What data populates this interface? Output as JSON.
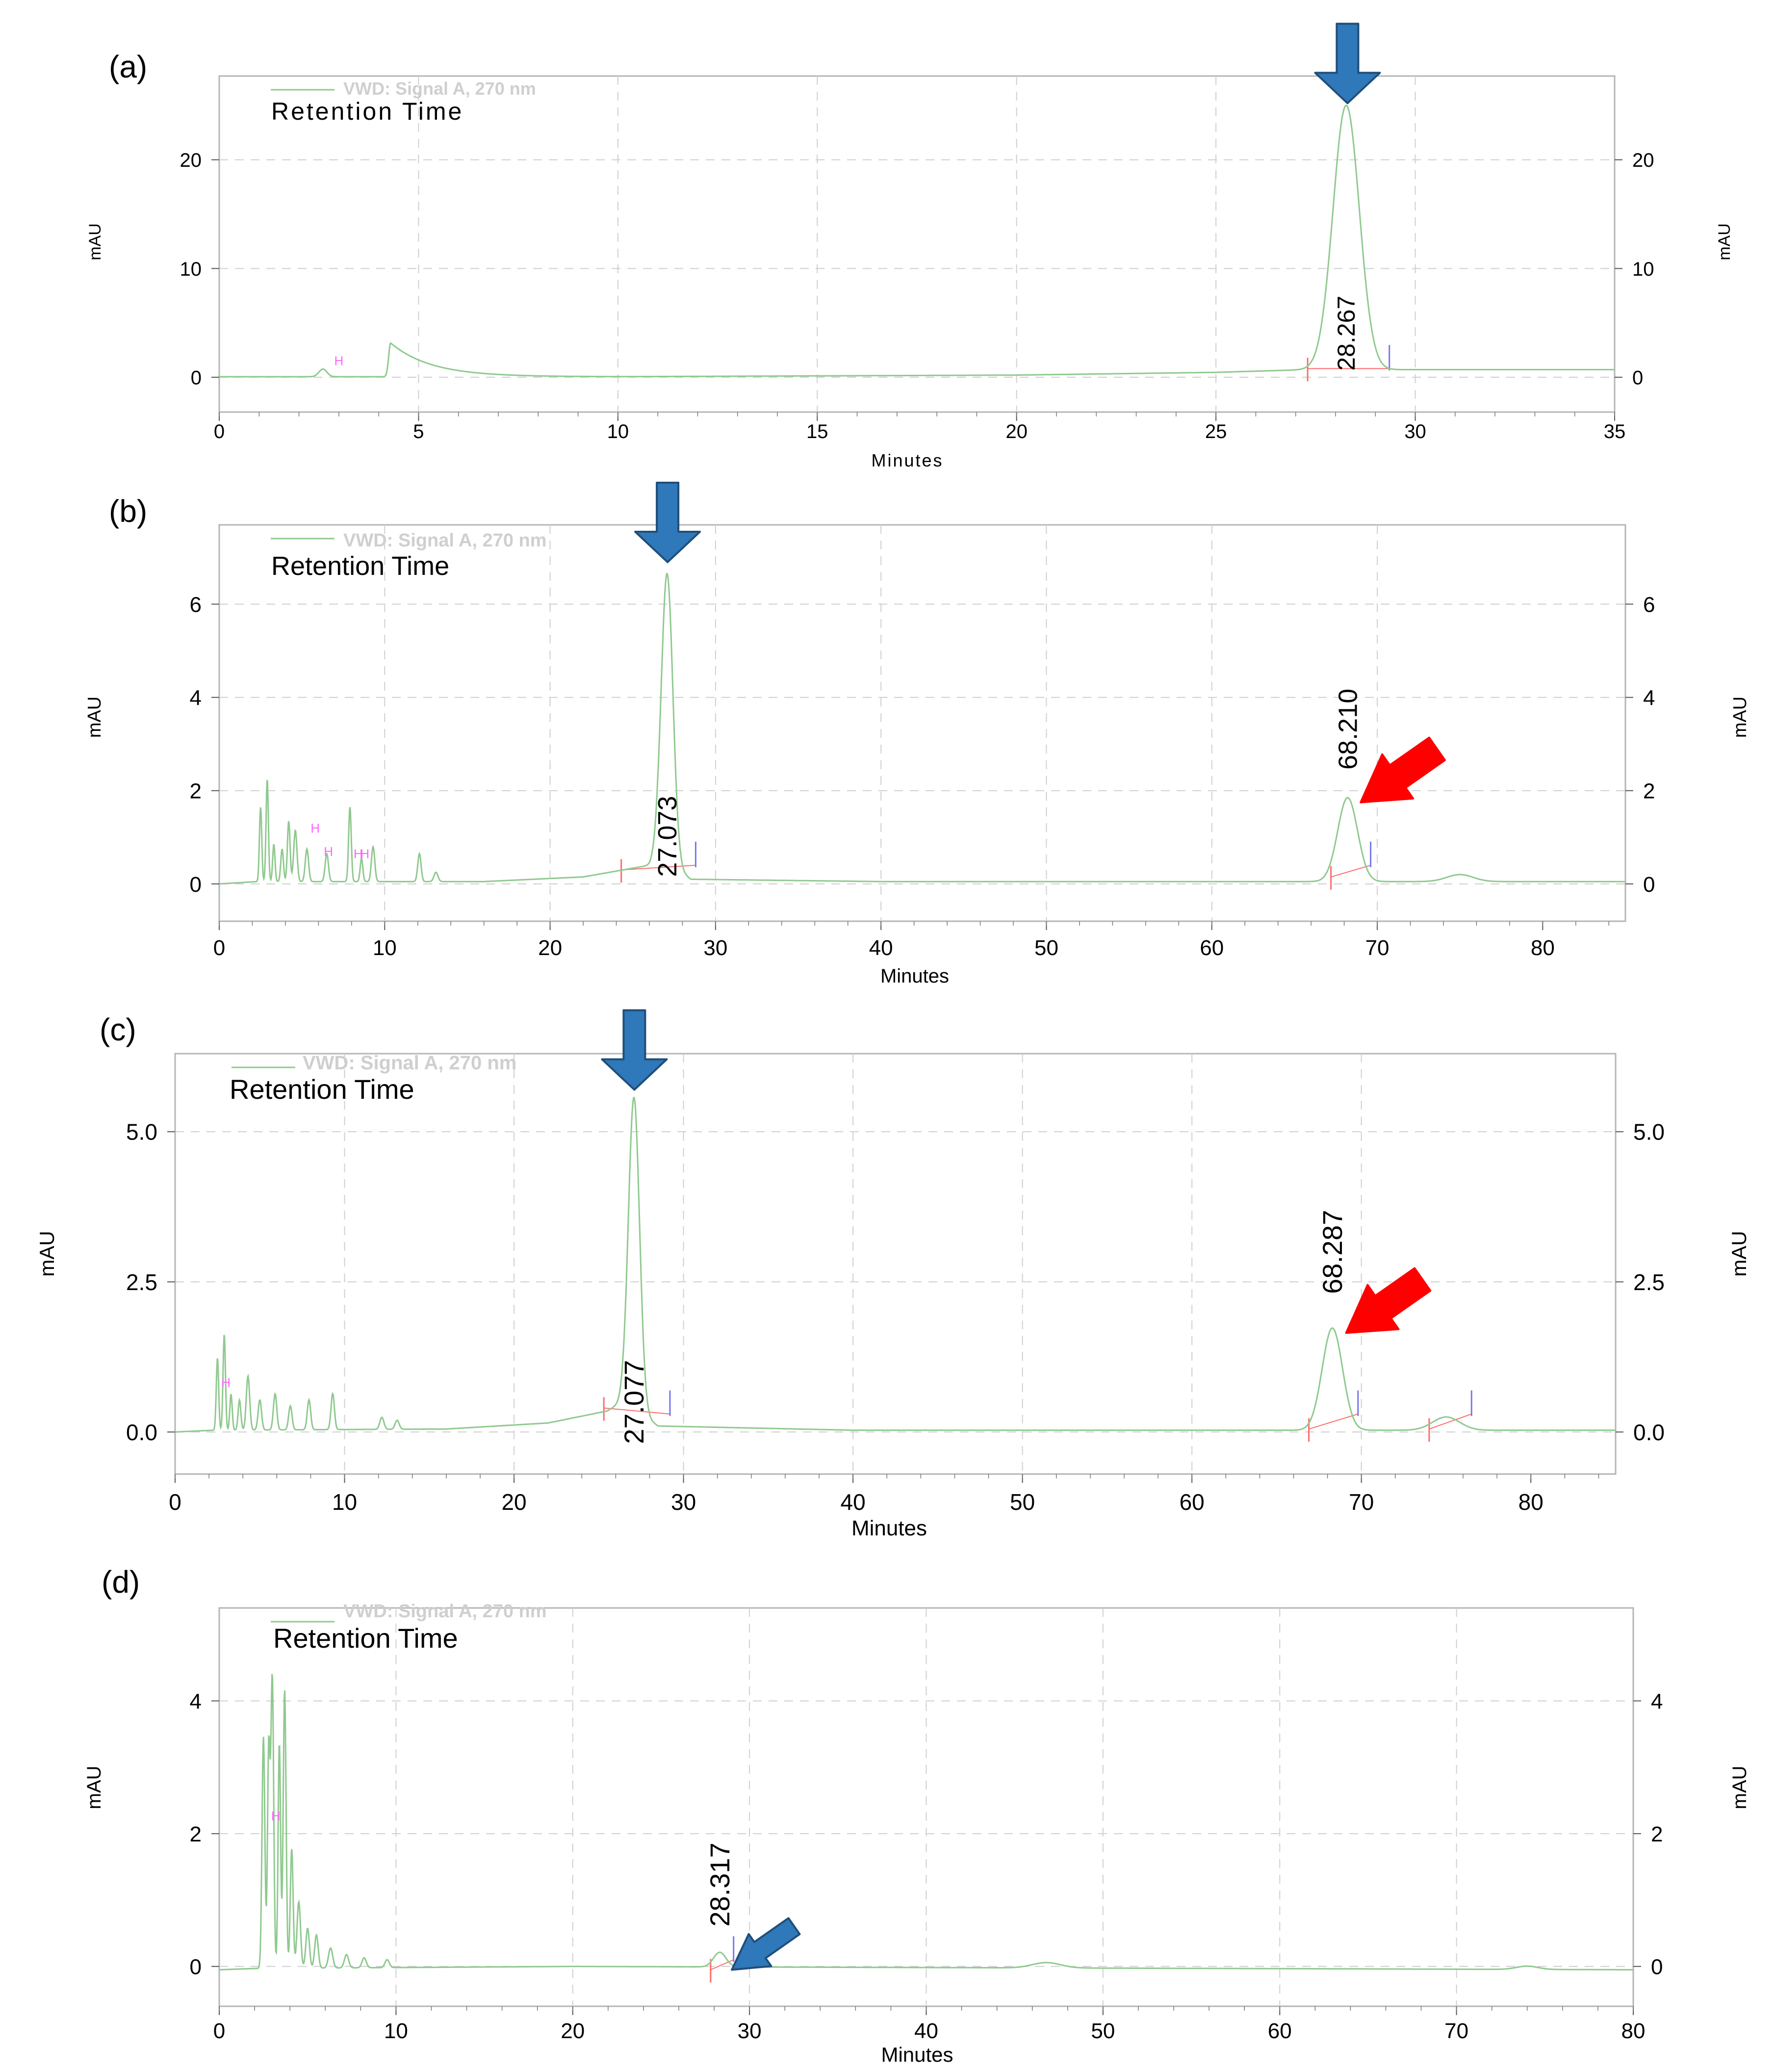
{
  "figure": {
    "description_visible": "HPLC chromatograms",
    "colors": {
      "trace": "#8fc98f",
      "baseline_tick_start": "#ff6b6b",
      "baseline_tick_end": "#7777ee",
      "peak_marker": "#ff66ff",
      "grid": "#cfcfcf",
      "frame": "#b5b5b5",
      "legend_text": "#cfcfcf",
      "blue_arrow": "#2f78b9",
      "blue_arrow_edge": "#1f4e79",
      "red_arrow": "#ff0000"
    }
  },
  "chart_data": [
    {
      "panel": "(a)",
      "type": "line",
      "legend": "VWD: Signal A, 270 nm",
      "annotation": "Retention Time",
      "xlabel": "Minutes",
      "ylabel": "mAU",
      "xlim": [
        0,
        35
      ],
      "ylim": [
        -3.2,
        27.7
      ],
      "xticks": [
        0,
        5,
        10,
        15,
        20,
        25,
        30,
        35
      ],
      "xtick_labels": [
        "0",
        "5",
        "10",
        "15",
        "20",
        "25",
        "30",
        "35"
      ],
      "yticks": [
        0,
        10,
        20
      ],
      "ytick_labels": [
        "0",
        "10",
        "20"
      ],
      "baseline": [
        [
          0,
          0.05
        ],
        [
          10,
          0.05
        ],
        [
          20,
          0.2
        ],
        [
          25,
          0.45
        ],
        [
          27.3,
          0.7
        ]
      ],
      "peaks": [
        {
          "rt": 2.6,
          "height": 0.7,
          "width": 0.1
        },
        {
          "rt": 4.3,
          "height": 3.1,
          "tail": 1.0
        },
        {
          "rt": 28.267,
          "height": 24.3,
          "width": 0.33
        }
      ],
      "peak_labels": [
        {
          "rt": 28.267,
          "text": "28.267",
          "y": 0.6
        }
      ],
      "peak_markers": [
        {
          "x": 3.0,
          "y": 1.1,
          "text": "H"
        }
      ],
      "integration_start": [
        {
          "x": 27.3,
          "y": 0.8
        }
      ],
      "integration_end": [
        {
          "x": 29.35,
          "y": 0.8
        }
      ],
      "arrows": [
        {
          "color": "blue",
          "x": 28.3,
          "y": 25.2,
          "direction": "down"
        }
      ]
    },
    {
      "panel": "(b)",
      "type": "line",
      "legend": "VWD: Signal A, 270 nm",
      "annotation": "Retention Time",
      "xlabel": "Minutes",
      "ylabel": "mAU",
      "xlim": [
        0,
        85
      ],
      "ylim": [
        -0.8,
        7.7
      ],
      "xticks": [
        0,
        10,
        20,
        30,
        40,
        50,
        60,
        70,
        80
      ],
      "xtick_labels": [
        "0",
        "10",
        "20",
        "30",
        "40",
        "50",
        "60",
        "70",
        "80"
      ],
      "yticks": [
        0,
        2,
        4,
        6
      ],
      "ytick_labels": [
        "0",
        "2",
        "4",
        "6"
      ],
      "baseline": [
        [
          0,
          0.0
        ],
        [
          2.3,
          0.05
        ],
        [
          16,
          0.05
        ],
        [
          22,
          0.15
        ],
        [
          26,
          0.4
        ],
        [
          26.5,
          0.6
        ],
        [
          28.5,
          0.1
        ],
        [
          40,
          0.05
        ],
        [
          85,
          0.05
        ]
      ],
      "peaks": [
        {
          "rt": 2.5,
          "height": 1.6,
          "width": 0.07
        },
        {
          "rt": 2.9,
          "height": 2.2,
          "width": 0.07
        },
        {
          "rt": 3.3,
          "height": 0.8,
          "width": 0.07
        },
        {
          "rt": 3.8,
          "height": 0.7,
          "width": 0.08
        },
        {
          "rt": 4.2,
          "height": 1.3,
          "width": 0.08
        },
        {
          "rt": 4.6,
          "height": 1.1,
          "width": 0.1
        },
        {
          "rt": 5.3,
          "height": 0.7,
          "width": 0.1
        },
        {
          "rt": 6.5,
          "height": 0.6,
          "width": 0.1
        },
        {
          "rt": 7.9,
          "height": 1.6,
          "width": 0.08
        },
        {
          "rt": 8.6,
          "height": 0.5,
          "width": 0.08
        },
        {
          "rt": 9.3,
          "height": 0.75,
          "width": 0.1
        },
        {
          "rt": 12.1,
          "height": 0.6,
          "width": 0.1
        },
        {
          "rt": 13.1,
          "height": 0.2,
          "width": 0.12
        },
        {
          "rt": 27.073,
          "height": 6.2,
          "width": 0.35
        },
        {
          "rt": 68.21,
          "height": 1.8,
          "width": 0.6
        },
        {
          "rt": 75.0,
          "height": 0.15,
          "width": 0.8
        }
      ],
      "peak_labels": [
        {
          "rt": 27.073,
          "text": "27.073",
          "y": 0.15
        },
        {
          "rt": 68.21,
          "text": "68.210",
          "y": 2.45
        }
      ],
      "peak_markers": [
        {
          "x": 5.8,
          "y": 1.1,
          "text": "H"
        },
        {
          "x": 6.6,
          "y": 0.6,
          "text": "H"
        },
        {
          "x": 8.4,
          "y": 0.55,
          "text": "H"
        },
        {
          "x": 8.8,
          "y": 0.55,
          "text": "H"
        }
      ],
      "integration_start": [
        {
          "x": 24.3,
          "y": 0.3
        },
        {
          "x": 67.2,
          "y": 0.15
        }
      ],
      "integration_end": [
        {
          "x": 28.8,
          "y": 0.4
        },
        {
          "x": 69.6,
          "y": 0.4
        }
      ],
      "arrows": [
        {
          "color": "blue",
          "x": 27.1,
          "y": 6.9,
          "direction": "down"
        },
        {
          "color": "red",
          "x": 69.0,
          "y": 1.75,
          "direction": "down-left"
        }
      ]
    },
    {
      "panel": "(c)",
      "type": "line",
      "legend": "VWD: Signal A, 270 nm",
      "annotation": "Retention Time",
      "xlabel": "Minutes",
      "ylabel": "mAU",
      "xlim": [
        0,
        85
      ],
      "ylim": [
        -0.7,
        6.3
      ],
      "xticks": [
        0,
        10,
        20,
        30,
        40,
        50,
        60,
        70,
        80
      ],
      "xtick_labels": [
        "0",
        "10",
        "20",
        "30",
        "40",
        "50",
        "60",
        "70",
        "80"
      ],
      "yticks": [
        0,
        2.5,
        5
      ],
      "ytick_labels": [
        "0.0",
        "2.5",
        "5.0"
      ],
      "baseline": [
        [
          0,
          0.0
        ],
        [
          2.3,
          0.03
        ],
        [
          16,
          0.05
        ],
        [
          22,
          0.15
        ],
        [
          25.5,
          0.35
        ],
        [
          26.4,
          0.5
        ],
        [
          28.5,
          0.1
        ],
        [
          40,
          0.03
        ],
        [
          85,
          0.03
        ]
      ],
      "peaks": [
        {
          "rt": 2.5,
          "height": 1.2,
          "width": 0.07
        },
        {
          "rt": 2.9,
          "height": 1.6,
          "width": 0.07
        },
        {
          "rt": 3.3,
          "height": 0.6,
          "width": 0.07
        },
        {
          "rt": 3.8,
          "height": 0.5,
          "width": 0.08
        },
        {
          "rt": 4.3,
          "height": 0.9,
          "width": 0.1
        },
        {
          "rt": 5.0,
          "height": 0.5,
          "width": 0.1
        },
        {
          "rt": 5.9,
          "height": 0.6,
          "width": 0.1
        },
        {
          "rt": 6.8,
          "height": 0.4,
          "width": 0.1
        },
        {
          "rt": 7.9,
          "height": 0.5,
          "width": 0.1
        },
        {
          "rt": 9.3,
          "height": 0.6,
          "width": 0.1
        },
        {
          "rt": 12.2,
          "height": 0.2,
          "width": 0.12
        },
        {
          "rt": 13.1,
          "height": 0.15,
          "width": 0.12
        },
        {
          "rt": 27.077,
          "height": 5.2,
          "width": 0.33
        },
        {
          "rt": 68.287,
          "height": 1.7,
          "width": 0.6
        },
        {
          "rt": 75.0,
          "height": 0.22,
          "width": 0.8
        }
      ],
      "peak_labels": [
        {
          "rt": 27.077,
          "text": "27.077",
          "y": -0.2
        },
        {
          "rt": 68.287,
          "text": "68.287",
          "y": 2.3
        }
      ],
      "peak_markers": [
        {
          "x": 3.0,
          "y": 0.75,
          "text": "H"
        }
      ],
      "integration_start": [
        {
          "x": 25.3,
          "y": 0.4
        },
        {
          "x": 66.9,
          "y": 0.05
        },
        {
          "x": 74.0,
          "y": 0.05
        }
      ],
      "integration_end": [
        {
          "x": 29.2,
          "y": 0.3
        },
        {
          "x": 69.8,
          "y": 0.3
        },
        {
          "x": 76.5,
          "y": 0.3
        }
      ],
      "arrows": [
        {
          "color": "blue",
          "x": 27.1,
          "y": 5.7,
          "direction": "down"
        },
        {
          "color": "red",
          "x": 69.1,
          "y": 1.65,
          "direction": "down-left"
        }
      ]
    },
    {
      "panel": "(d)",
      "type": "line",
      "legend": "VWD: Signal A, 270 nm",
      "annotation": "Retention Time",
      "xlabel": "Minutes",
      "ylabel": "mAU",
      "xlim": [
        0,
        80
      ],
      "ylim": [
        -0.6,
        5.4
      ],
      "xticks": [
        0,
        10,
        20,
        30,
        40,
        50,
        60,
        70,
        80
      ],
      "xtick_labels": [
        "0",
        "10",
        "20",
        "30",
        "40",
        "50",
        "60",
        "70",
        "80"
      ],
      "yticks": [
        0,
        2,
        4
      ],
      "ytick_labels": [
        "0",
        "2",
        "4"
      ],
      "baseline": [
        [
          0,
          -0.05
        ],
        [
          2.1,
          -0.03
        ],
        [
          20,
          0.0
        ],
        [
          80,
          -0.05
        ]
      ],
      "peaks": [
        {
          "rt": 2.5,
          "height": 3.5,
          "width": 0.08
        },
        {
          "rt": 2.8,
          "height": 3.3,
          "width": 0.07
        },
        {
          "rt": 3.0,
          "height": 4.4,
          "width": 0.08
        },
        {
          "rt": 3.4,
          "height": 3.4,
          "width": 0.07
        },
        {
          "rt": 3.7,
          "height": 4.2,
          "width": 0.08
        },
        {
          "rt": 4.1,
          "height": 1.8,
          "width": 0.08
        },
        {
          "rt": 4.5,
          "height": 1.0,
          "width": 0.1
        },
        {
          "rt": 5.0,
          "height": 0.6,
          "width": 0.1
        },
        {
          "rt": 5.5,
          "height": 0.5,
          "width": 0.1
        },
        {
          "rt": 6.3,
          "height": 0.3,
          "width": 0.12
        },
        {
          "rt": 7.2,
          "height": 0.2,
          "width": 0.12
        },
        {
          "rt": 8.2,
          "height": 0.15,
          "width": 0.12
        },
        {
          "rt": 9.5,
          "height": 0.12,
          "width": 0.12
        },
        {
          "rt": 28.317,
          "height": 0.22,
          "width": 0.35
        },
        {
          "rt": 46.8,
          "height": 0.08,
          "width": 0.8
        },
        {
          "rt": 74.0,
          "height": 0.05,
          "width": 0.6
        }
      ],
      "peak_labels": [
        {
          "rt": 28.317,
          "text": "28.317",
          "y": 0.6
        }
      ],
      "peak_markers": [
        {
          "x": 3.2,
          "y": 2.2,
          "text": "H"
        }
      ],
      "integration_start": [
        {
          "x": 27.8,
          "y": -0.05
        }
      ],
      "integration_end": [
        {
          "x": 29.1,
          "y": 0.1
        }
      ],
      "arrows": [
        {
          "color": "blue",
          "x": 29.0,
          "y": -0.05,
          "direction": "down-left"
        }
      ]
    }
  ]
}
